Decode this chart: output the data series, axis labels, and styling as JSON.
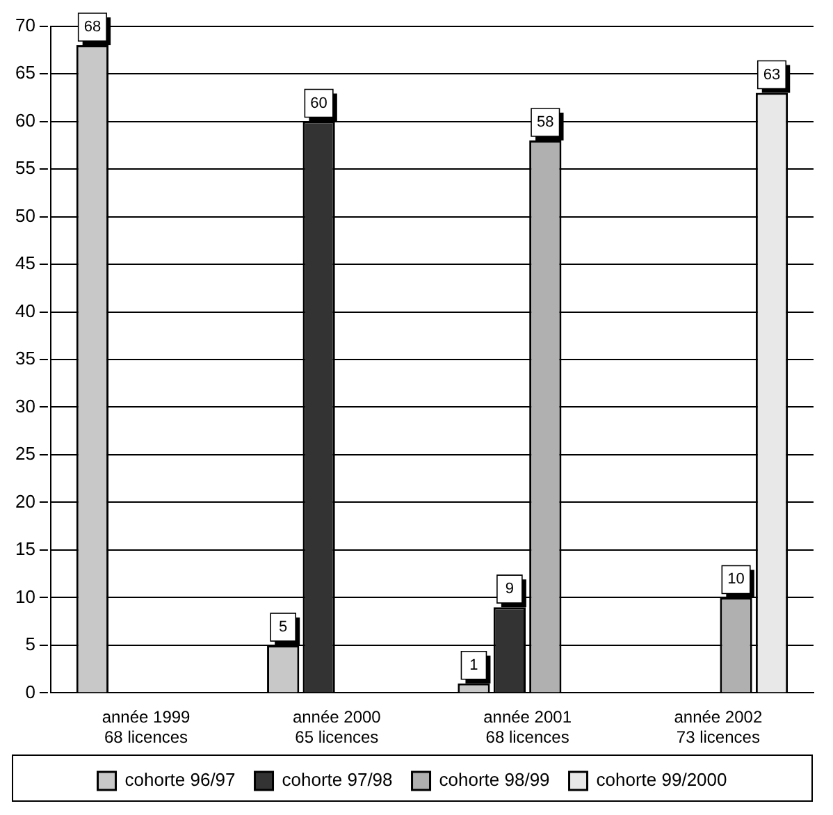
{
  "chart_data": {
    "type": "bar",
    "categories": [
      "année 1999\n68 licences",
      "année 2000\n65 licences",
      "année 2001\n68 licences",
      "année 2002\n73 licences"
    ],
    "series": [
      {
        "name": "cohorte 96/97",
        "color": "#c8c8c8",
        "values": [
          68,
          5,
          1,
          null
        ]
      },
      {
        "name": "cohorte 97/98",
        "color": "#333333",
        "values": [
          null,
          60,
          9,
          null
        ]
      },
      {
        "name": "cohorte 98/99",
        "color": "#b0b0b0",
        "values": [
          null,
          null,
          58,
          10
        ]
      },
      {
        "name": "cohorte 99/2000",
        "color": "#e8e8e8",
        "values": [
          null,
          null,
          null,
          63
        ]
      }
    ],
    "ylim": [
      0,
      70
    ],
    "yticks": [
      0,
      5,
      10,
      15,
      20,
      25,
      30,
      35,
      40,
      45,
      50,
      55,
      60,
      65,
      70
    ],
    "grid": "y",
    "legend": "bottom",
    "data_labels": true
  }
}
